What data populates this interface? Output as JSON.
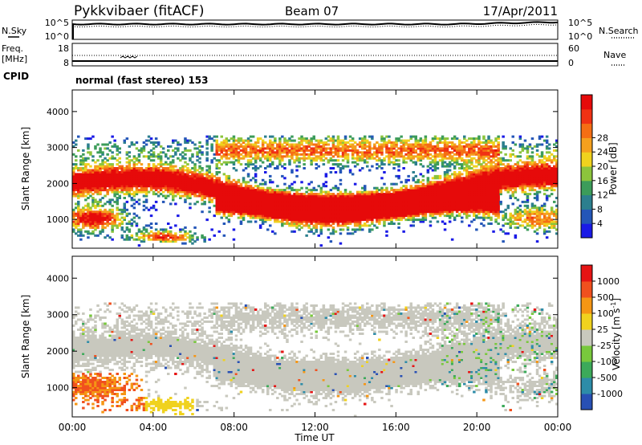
{
  "header": {
    "station": "Pykkvibaer (fitACF)",
    "beam": "Beam 07",
    "date": "17/Apr/2011"
  },
  "noise_panel": {
    "left_label": "N.Sky",
    "left_ticks": [
      "10^5",
      "10^0"
    ],
    "right_ticks": [
      "10^5",
      "10^0"
    ],
    "right_label": "N.Search"
  },
  "freq_panel": {
    "left_label_1": "Freq.",
    "left_label_2": "[MHz]",
    "left_ticks": [
      "18",
      "8"
    ],
    "right_ticks": [
      "60",
      "0"
    ],
    "right_label": "Nave"
  },
  "cpid": {
    "label": "CPID",
    "value": "normal (fast stereo) 153"
  },
  "chart_data": [
    {
      "type": "heatmap",
      "panel": "power",
      "ylabel": "Slant Range [km]",
      "yticks": [
        "1000",
        "2000",
        "3000",
        "4000"
      ],
      "ylim": [
        200,
        4600
      ],
      "xlim_hours": [
        0,
        24
      ],
      "colorbar": {
        "label": "Power [dB]",
        "ticks": [
          "4",
          "8",
          "12",
          "16",
          "20",
          "24",
          "28"
        ],
        "colors": [
          "#1a1ae6",
          "#2456b8",
          "#2c7f8e",
          "#3c9c5a",
          "#8cc43c",
          "#f0d21e",
          "#f5a01e",
          "#f56e14",
          "#f03214",
          "#e60a0a"
        ]
      }
    },
    {
      "type": "heatmap",
      "panel": "velocity",
      "ylabel": "Slant Range [km]",
      "yticks": [
        "1000",
        "2000",
        "3000",
        "4000"
      ],
      "ylim": [
        200,
        4600
      ],
      "xlim_hours": [
        0,
        24
      ],
      "colorbar": {
        "label": "Velocity [m s",
        "label_sup": "-1",
        "label_close": "]",
        "ticks": [
          "1000",
          "500",
          "100",
          "25",
          "-25",
          "-100",
          "-500",
          "-1000"
        ],
        "colors": [
          "#2850b4",
          "#2d8ca8",
          "#3caa5a",
          "#78c83c",
          "#c8c8be",
          "#f0d21e",
          "#f59614",
          "#f0501e",
          "#e61414"
        ]
      }
    }
  ],
  "x_axis": {
    "ticks": [
      "00:00",
      "04:00",
      "08:00",
      "12:00",
      "16:00",
      "20:00",
      "00:00"
    ],
    "label": "Time UT"
  }
}
